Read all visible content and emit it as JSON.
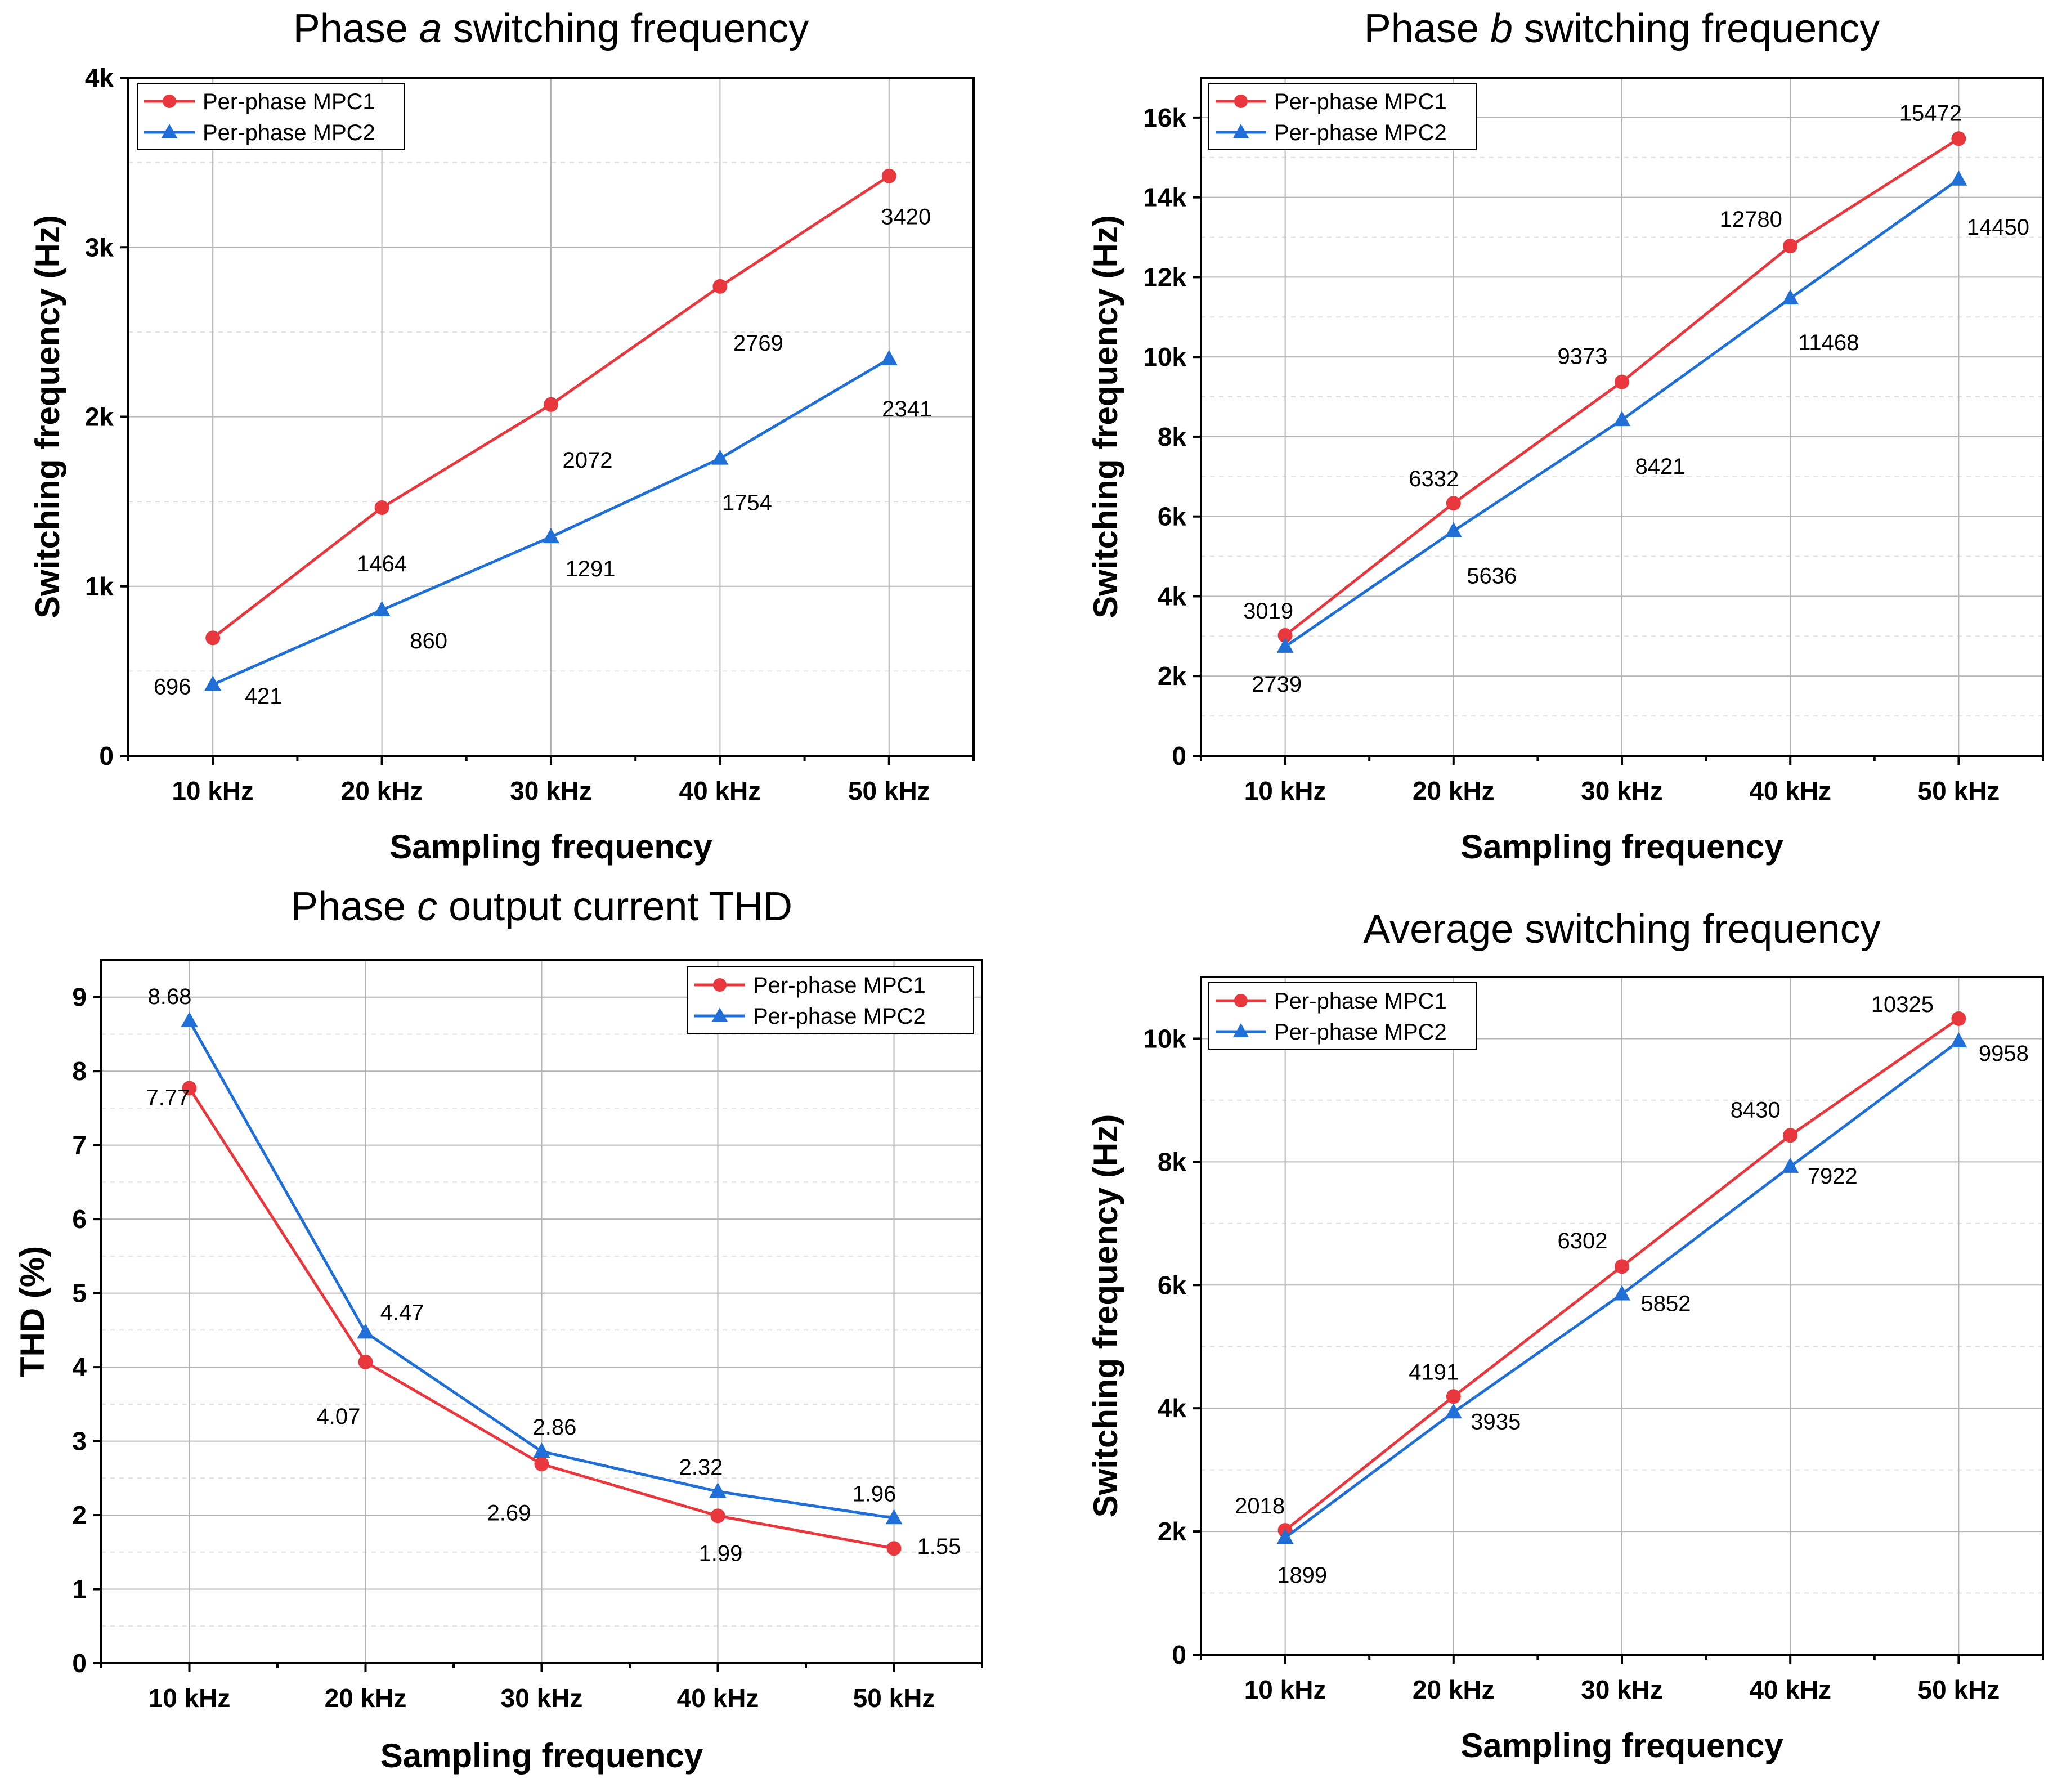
{
  "colors": {
    "mpc1": "#e8383d",
    "mpc2": "#1f6fd6"
  },
  "chart_data": [
    {
      "type": "line",
      "title_prefix": "Phase ",
      "title_italic": "a",
      "title_suffix": " switching frequency",
      "xlabel": "Sampling frequency",
      "ylabel": "Switching frequency (Hz)",
      "categories": [
        "10 kHz",
        "20 kHz",
        "30 kHz",
        "40 kHz",
        "50 kHz"
      ],
      "ylim": [
        0,
        4000
      ],
      "yticks": [
        0,
        1000,
        2000,
        3000,
        4000
      ],
      "ytick_labels": [
        "0",
        "1k",
        "2k",
        "3k",
        "4k"
      ],
      "legend_position": "top-left",
      "series": [
        {
          "name": "Per-phase MPC1",
          "marker": "circle",
          "values": [
            696,
            1464,
            2072,
            2769,
            3420
          ],
          "labels": [
            "696",
            "1464",
            "2072",
            "2769",
            "3420"
          ]
        },
        {
          "name": "Per-phase MPC2",
          "marker": "triangle",
          "values": [
            421,
            860,
            1291,
            1754,
            2341
          ],
          "labels": [
            "421",
            "860",
            "1291",
            "1754",
            "2341"
          ]
        }
      ]
    },
    {
      "type": "line",
      "title_prefix": "Phase ",
      "title_italic": "b",
      "title_suffix": " switching frequency",
      "xlabel": "Sampling frequency",
      "ylabel": "Switching frequency (Hz)",
      "categories": [
        "10 kHz",
        "20 kHz",
        "30 kHz",
        "40 kHz",
        "50 kHz"
      ],
      "ylim": [
        0,
        17000
      ],
      "yticks": [
        0,
        2000,
        4000,
        6000,
        8000,
        10000,
        12000,
        14000,
        16000
      ],
      "ytick_labels": [
        "0",
        "2k",
        "4k",
        "6k",
        "8k",
        "10k",
        "12k",
        "14k",
        "16k"
      ],
      "legend_position": "top-left",
      "series": [
        {
          "name": "Per-phase MPC1",
          "marker": "circle",
          "values": [
            3019,
            6332,
            9373,
            12780,
            15472
          ],
          "labels": [
            "3019",
            "6332",
            "9373",
            "12780",
            "15472"
          ]
        },
        {
          "name": "Per-phase MPC2",
          "marker": "triangle",
          "values": [
            2739,
            5636,
            8421,
            11468,
            14450
          ],
          "labels": [
            "2739",
            "5636",
            "8421",
            "11468",
            "14450"
          ]
        }
      ]
    },
    {
      "type": "line",
      "title_prefix": "Phase ",
      "title_italic": "c",
      "title_suffix": " output current THD",
      "xlabel": "Sampling frequency",
      "ylabel": "THD (%)",
      "categories": [
        "10 kHz",
        "20 kHz",
        "30 kHz",
        "40 kHz",
        "50 kHz"
      ],
      "ylim": [
        0,
        9.5
      ],
      "yticks": [
        0,
        1,
        2,
        3,
        4,
        5,
        6,
        7,
        8,
        9
      ],
      "ytick_labels": [
        "0",
        "1",
        "2",
        "3",
        "4",
        "5",
        "6",
        "7",
        "8",
        "9"
      ],
      "legend_position": "top-right",
      "series": [
        {
          "name": "Per-phase MPC1",
          "marker": "circle",
          "values": [
            7.77,
            4.07,
            2.69,
            1.99,
            1.55
          ],
          "labels": [
            "7.77",
            "4.07",
            "2.69",
            "1.99",
            "1.55"
          ]
        },
        {
          "name": "Per-phase MPC2",
          "marker": "triangle",
          "values": [
            8.68,
            4.47,
            2.86,
            2.32,
            1.96
          ],
          "labels": [
            "8.68",
            "4.47",
            "2.86",
            "2.32",
            "1.96"
          ]
        }
      ]
    },
    {
      "type": "line",
      "title_prefix": "",
      "title_italic": "",
      "title_suffix": "Average switching frequency",
      "xlabel": "Sampling frequency",
      "ylabel": "Switching frequency (Hz)",
      "categories": [
        "10 kHz",
        "20 kHz",
        "30 kHz",
        "40 kHz",
        "50 kHz"
      ],
      "ylim": [
        0,
        11000
      ],
      "yticks": [
        0,
        2000,
        4000,
        6000,
        8000,
        10000
      ],
      "ytick_labels": [
        "0",
        "2k",
        "4k",
        "6k",
        "8k",
        "10k"
      ],
      "legend_position": "top-left",
      "series": [
        {
          "name": "Per-phase MPC1",
          "marker": "circle",
          "values": [
            2018,
            4191,
            6302,
            8430,
            10325
          ],
          "labels": [
            "2018",
            "4191",
            "6302",
            "8430",
            "10325"
          ]
        },
        {
          "name": "Per-phase MPC2",
          "marker": "triangle",
          "values": [
            1899,
            3935,
            5852,
            7922,
            9958
          ],
          "labels": [
            "1899",
            "3935",
            "5852",
            "7922",
            "9958"
          ]
        }
      ]
    }
  ]
}
